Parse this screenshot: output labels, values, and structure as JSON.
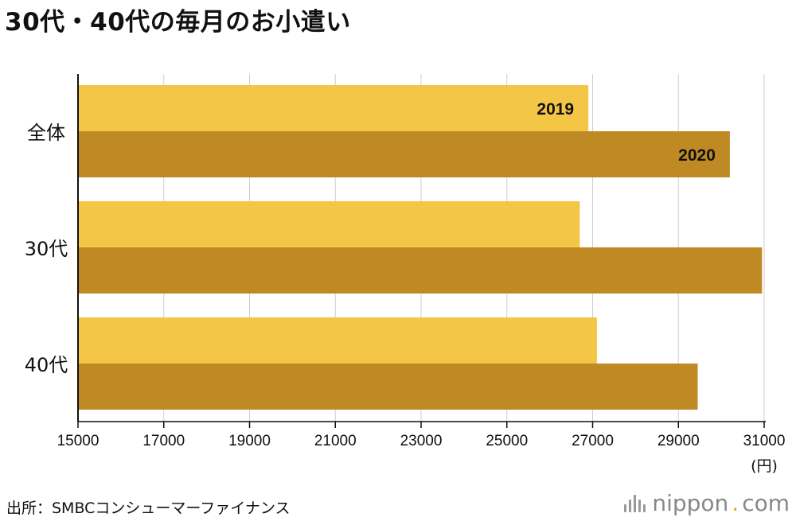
{
  "title": "30代・40代の毎月のお小遣い",
  "chart_data": {
    "type": "bar",
    "orientation": "horizontal",
    "categories": [
      "全体",
      "30代",
      "40代"
    ],
    "series": [
      {
        "name": "2019",
        "values": [
          26900,
          26700,
          27100
        ],
        "color": "#f4c646"
      },
      {
        "name": "2020",
        "values": [
          30200,
          30950,
          29450
        ],
        "color": "#bf8a23"
      }
    ],
    "xlim": [
      15000,
      31000
    ],
    "xticks": [
      "15000",
      "17000",
      "19000",
      "21000",
      "23000",
      "25000",
      "27000",
      "29000",
      "31000"
    ],
    "xunit": "(円)",
    "grid": true,
    "series_labels_on": "全体"
  },
  "source": "出所：SMBCコンシューマーファイナンス",
  "brand": {
    "name": "nippon",
    "dot": ".",
    "suffix": "com"
  }
}
